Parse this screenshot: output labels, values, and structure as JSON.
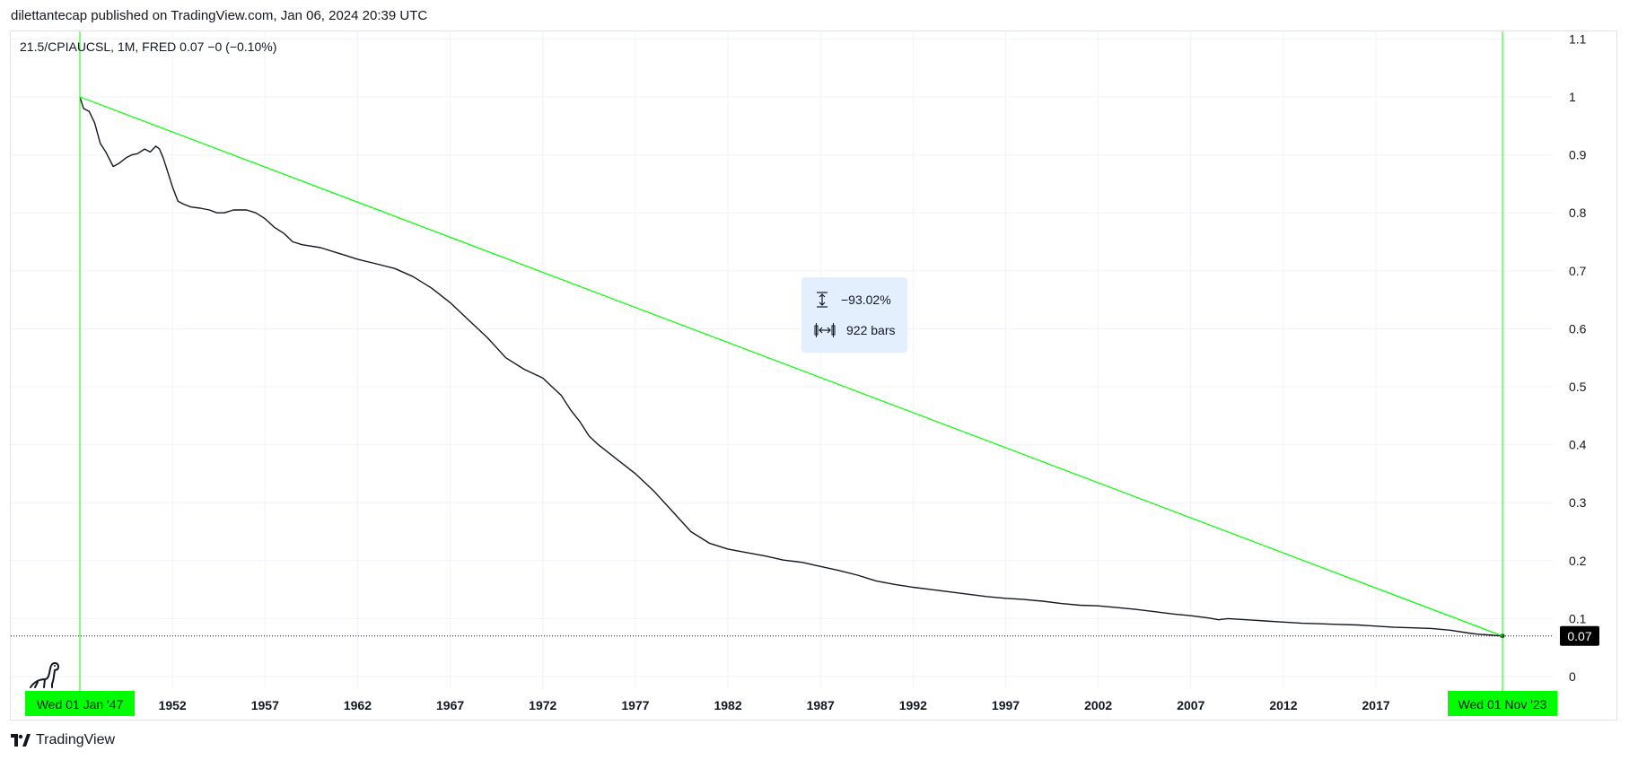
{
  "header": {
    "published_text": "dilettantecap published on TradingView.com, Jan 06, 2024 20:39 UTC"
  },
  "legend": {
    "text": "21.5/CPIAUCSL, 1M, FRED  0.07  −0 (−0.10%)"
  },
  "measure": {
    "price_change": "−93.02%",
    "bars": "922 bars"
  },
  "footer": {
    "brand": "TradingView"
  },
  "colors": {
    "line": "#131722",
    "accent": "#00ff00",
    "grid": "#f0f3fa",
    "measure_bg": "#e3effd"
  },
  "icons": {
    "measure_price": "vertical-arrows-icon",
    "measure_bars": "horizontal-arrows-icon",
    "logo": "tradingview-logo-icon",
    "mascot": "dinosaur-icon"
  },
  "chart_data": {
    "type": "line",
    "y_ticks": [
      "0",
      "0.1",
      "0.2",
      "0.3",
      "0.4",
      "0.5",
      "0.6",
      "0.7",
      "0.8",
      "0.9",
      "1",
      "1.1"
    ],
    "x_ticks": [
      "1952",
      "1957",
      "1962",
      "1967",
      "1972",
      "1977",
      "1982",
      "1987",
      "1992",
      "1997",
      "2002",
      "2007",
      "2012",
      "2017"
    ],
    "ylim": [
      0,
      1.1
    ],
    "xlim": [
      1945.1,
      2025.2
    ],
    "last_value_label": "0.07",
    "start_label": "Wed 01 Jan '47",
    "end_label": "Wed 01 Nov '23",
    "start_x": 1947.0,
    "end_x": 2023.83,
    "series": [
      {
        "x": [
          1947.0,
          1947.2,
          1947.5,
          1947.8,
          1948.1,
          1948.4,
          1948.8,
          1949.1,
          1949.5,
          1949.8,
          1950.1,
          1950.5,
          1950.8,
          1951.1,
          1951.3,
          1951.5,
          1951.7,
          1952.0,
          1952.3,
          1952.6,
          1953.0,
          1953.5,
          1954.0,
          1954.4,
          1954.8,
          1955.3,
          1955.7,
          1956.0,
          1956.5,
          1957.0,
          1957.5,
          1958.0,
          1958.5,
          1959.0,
          1960.0,
          1961.0,
          1962.0,
          1963.0,
          1964.0,
          1965.0,
          1966.0,
          1967.0,
          1968.0,
          1969.0,
          1970.0,
          1971.0,
          1972.0,
          1973.0,
          1973.5,
          1974.0,
          1974.5,
          1975.0,
          1976.0,
          1977.0,
          1978.0,
          1979.0,
          1980.0,
          1981.0,
          1982.0,
          1983.0,
          1984.0,
          1985.0,
          1986.0,
          1987.0,
          1988.0,
          1989.0,
          1990.0,
          1991.0,
          1992.0,
          1993.0,
          1994.0,
          1995.0,
          1996.0,
          1997.0,
          1998.0,
          1999.0,
          2000.0,
          2001.0,
          2002.0,
          2003.0,
          2004.0,
          2005.0,
          2006.0,
          2007.0,
          2008.0,
          2008.5,
          2009.0,
          2010.0,
          2011.0,
          2012.0,
          2013.0,
          2014.0,
          2015.0,
          2016.0,
          2017.0,
          2018.0,
          2019.0,
          2020.0,
          2021.0,
          2022.0,
          2022.5,
          2023.0,
          2023.83
        ],
        "values": [
          1.0,
          0.98,
          0.975,
          0.955,
          0.92,
          0.905,
          0.88,
          0.885,
          0.895,
          0.9,
          0.902,
          0.91,
          0.905,
          0.915,
          0.91,
          0.895,
          0.875,
          0.845,
          0.82,
          0.815,
          0.81,
          0.808,
          0.805,
          0.8,
          0.8,
          0.805,
          0.805,
          0.805,
          0.8,
          0.79,
          0.775,
          0.765,
          0.75,
          0.745,
          0.74,
          0.73,
          0.72,
          0.712,
          0.704,
          0.69,
          0.67,
          0.645,
          0.615,
          0.585,
          0.55,
          0.53,
          0.515,
          0.485,
          0.46,
          0.44,
          0.415,
          0.4,
          0.375,
          0.35,
          0.32,
          0.285,
          0.25,
          0.23,
          0.22,
          0.214,
          0.208,
          0.201,
          0.197,
          0.19,
          0.183,
          0.175,
          0.165,
          0.159,
          0.154,
          0.15,
          0.146,
          0.142,
          0.138,
          0.135,
          0.133,
          0.13,
          0.126,
          0.123,
          0.122,
          0.119,
          0.116,
          0.112,
          0.108,
          0.105,
          0.101,
          0.098,
          0.1,
          0.098,
          0.096,
          0.094,
          0.092,
          0.091,
          0.09,
          0.089,
          0.087,
          0.085,
          0.084,
          0.083,
          0.08,
          0.075,
          0.073,
          0.072,
          0.07
        ]
      }
    ],
    "trend_line": {
      "x": [
        1947.0,
        2023.83
      ],
      "values": [
        1.0,
        0.07
      ]
    }
  }
}
